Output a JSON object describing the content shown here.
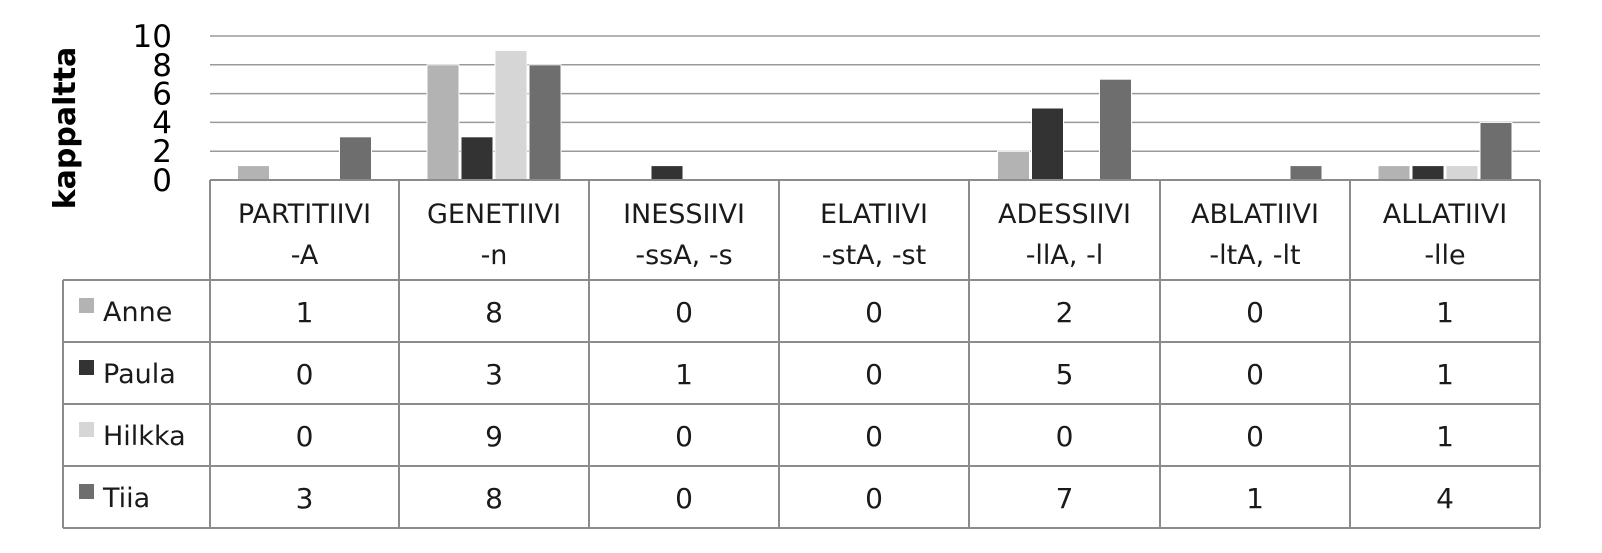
{
  "chart_data": {
    "type": "bar",
    "ylabel": "kappaltta",
    "ylim": [
      0,
      10
    ],
    "yticks": [
      0,
      2,
      4,
      6,
      8,
      10
    ],
    "grid": true,
    "legend": "data table below chart",
    "categories": [
      [
        "PARTITIIVI",
        "-A"
      ],
      [
        "GENETIIVI",
        "-n"
      ],
      [
        "INESSIIVI",
        "-ssA, -s"
      ],
      [
        "ELATIIVI",
        "-stA, -st"
      ],
      [
        "ADESSIIVI",
        "-llA, -l"
      ],
      [
        "ABLATIIVI",
        "-ltA, -lt"
      ],
      [
        "ALLATIIVI",
        "-lle"
      ]
    ],
    "series": [
      {
        "name": "Anne",
        "color": "#b3b3b3",
        "values": [
          1,
          8,
          0,
          0,
          2,
          0,
          1
        ]
      },
      {
        "name": "Paula",
        "color": "#333333",
        "values": [
          0,
          3,
          1,
          0,
          5,
          0,
          1
        ]
      },
      {
        "name": "Hilkka",
        "color": "#d6d6d6",
        "values": [
          0,
          9,
          0,
          0,
          0,
          0,
          1
        ]
      },
      {
        "name": "Tiia",
        "color": "#6e6e6e",
        "values": [
          3,
          8,
          0,
          0,
          7,
          1,
          4
        ]
      }
    ]
  }
}
